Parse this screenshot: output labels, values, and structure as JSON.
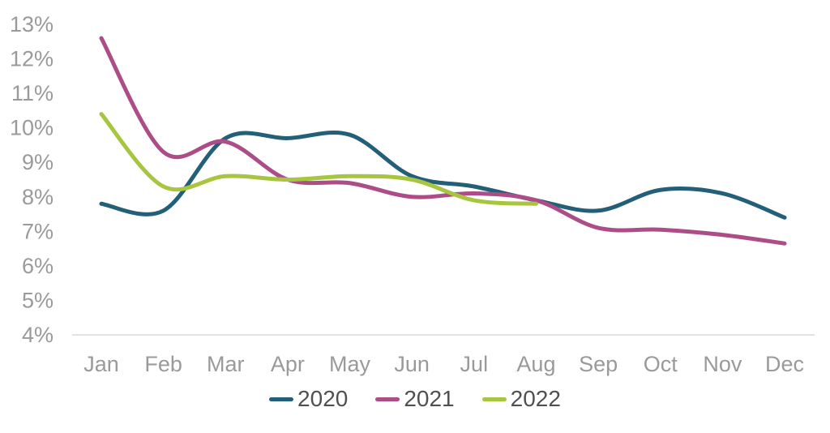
{
  "chart_data": {
    "type": "line",
    "x": [
      "Jan",
      "Feb",
      "Mar",
      "Apr",
      "May",
      "Jun",
      "Jul",
      "Aug",
      "Sep",
      "Oct",
      "Nov",
      "Dec"
    ],
    "series": [
      {
        "name": "2020",
        "color": "#235f78",
        "values": [
          7.8,
          7.6,
          9.7,
          9.7,
          9.8,
          8.6,
          8.3,
          7.9,
          7.6,
          8.2,
          8.1,
          7.4
        ]
      },
      {
        "name": "2021",
        "color": "#ad4d88",
        "values": [
          12.6,
          9.3,
          9.6,
          8.5,
          8.4,
          8.0,
          8.1,
          7.9,
          7.1,
          7.05,
          6.9,
          6.65
        ]
      },
      {
        "name": "2022",
        "color": "#a8c53f",
        "values": [
          10.4,
          8.3,
          8.6,
          8.5,
          8.6,
          8.5,
          7.9,
          7.8
        ]
      }
    ],
    "title": "",
    "xlabel": "",
    "ylabel": "",
    "ylim": [
      4,
      13
    ],
    "ytick_values": [
      13,
      12,
      11,
      10,
      9,
      8,
      7,
      6,
      5,
      4
    ],
    "ytick_labels": [
      "13%",
      "12%",
      "11%",
      "10%",
      "9%",
      "8%",
      "7%",
      "6%",
      "5%",
      "4%"
    ],
    "grid": false,
    "legend_position": "bottom",
    "axis_line_color": "#d9d9d9",
    "axis_text_color": "#9a9a9a",
    "legend_text_color": "#505050"
  }
}
